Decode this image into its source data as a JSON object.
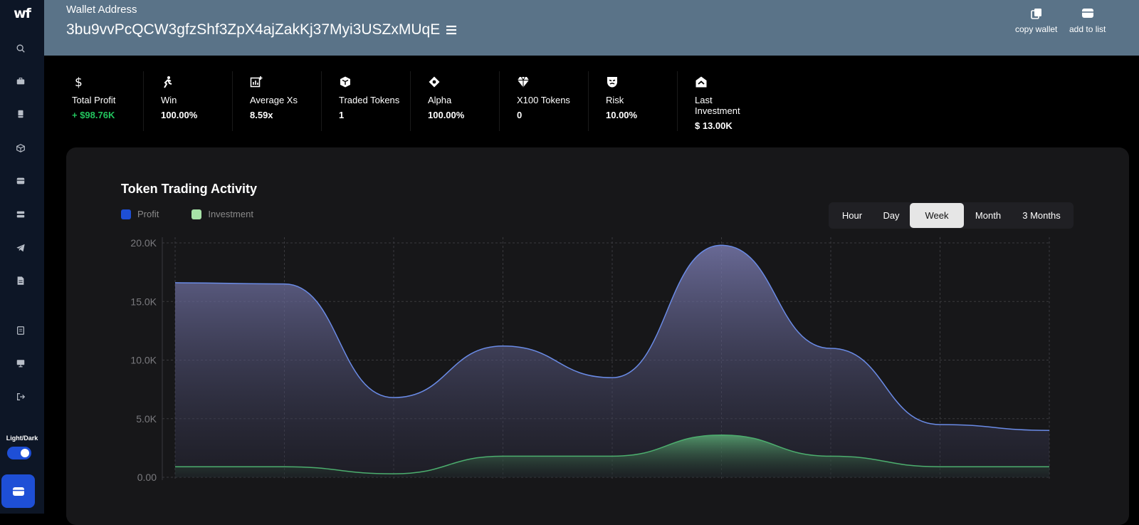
{
  "sidebar": {
    "logo": "wf",
    "toggle_label": "Light/Dark",
    "items": [
      {
        "name": "search-icon"
      },
      {
        "name": "briefcase-icon"
      },
      {
        "name": "book-icon"
      },
      {
        "name": "cube-icon"
      },
      {
        "name": "card-icon"
      },
      {
        "name": "layers-icon"
      },
      {
        "name": "telegram-icon"
      },
      {
        "name": "document-icon"
      },
      {
        "name": "receipt-icon"
      },
      {
        "name": "monitor-icon"
      },
      {
        "name": "logout-icon"
      }
    ]
  },
  "header": {
    "address_label": "Wallet Address",
    "address": "3bu9vvPcQCW3gfzShf3ZpX4ajZakKj37Myi3USZxMUqE",
    "copy_label": "copy wallet",
    "add_label": "add to list"
  },
  "stats": [
    {
      "label": "Total Profit",
      "value": "+ $98.76K",
      "icon": "dollar-icon",
      "positive": true
    },
    {
      "label": "Win",
      "value": "100.00%",
      "icon": "runner-icon"
    },
    {
      "label": "Average Xs",
      "value": "8.59x",
      "icon": "chart-plus-icon"
    },
    {
      "label": "Traded Tokens",
      "value": "1",
      "icon": "token-icon"
    },
    {
      "label": "Alpha",
      "value": "100.00%",
      "icon": "diamond-dot-icon"
    },
    {
      "label": "X100 Tokens",
      "value": "0",
      "icon": "gem-icon"
    },
    {
      "label": "Risk",
      "value": "10.00%",
      "icon": "mask-icon"
    },
    {
      "label": "Last Investment",
      "value": "$ 13.00K",
      "icon": "shield-house-icon"
    }
  ],
  "chart": {
    "title": "Token Trading Activity",
    "ranges": [
      "Hour",
      "Day",
      "Week",
      "Month",
      "3 Months"
    ],
    "active_range": "Week",
    "colors": {
      "profit": "#1e4fd6",
      "profit_line": "#6a8be6",
      "investment": "#a7e3a7",
      "investment_line": "#4cae6e"
    }
  },
  "chart_data": {
    "type": "area",
    "title": "Token Trading Activity",
    "xlabel": "",
    "ylabel": "",
    "ylim": [
      0,
      20000
    ],
    "yticks": [
      "0.00",
      "5.0K",
      "10.0K",
      "15.0K",
      "20.0K"
    ],
    "x": [
      0,
      1,
      2,
      3,
      4,
      5,
      6,
      7,
      8
    ],
    "grid": true,
    "legend": "top-left",
    "series": [
      {
        "name": "Profit",
        "values": [
          16600,
          16500,
          6800,
          11200,
          8500,
          19800,
          11000,
          4500,
          4000
        ]
      },
      {
        "name": "Investment",
        "values": [
          900,
          900,
          300,
          1800,
          1800,
          3600,
          1800,
          900,
          900
        ]
      }
    ]
  }
}
